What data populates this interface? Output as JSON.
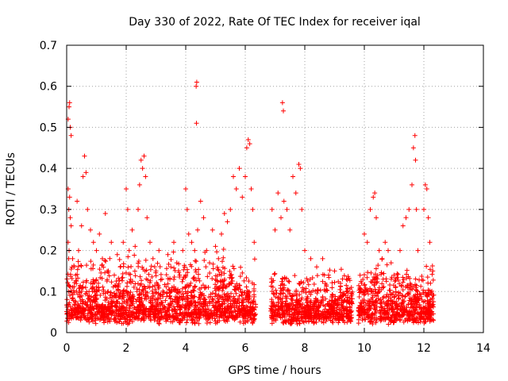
{
  "chart_data": {
    "type": "scatter",
    "title": "Day 330 of 2022, Rate Of TEC Index for receiver iqal",
    "xlabel": "GPS time / hours",
    "ylabel": "ROTI / TECUs",
    "xlim": [
      0,
      14
    ],
    "ylim": [
      0,
      0.7
    ],
    "xticks": [
      "0",
      "2",
      "4",
      "6",
      "8",
      "10",
      "12",
      "14"
    ],
    "yticks": [
      "0",
      "0.1",
      "0.2",
      "0.3",
      "0.4",
      "0.5",
      "0.6",
      "0.7"
    ],
    "grid": true,
    "marker": "plus",
    "color": "#ff0000",
    "series": [
      {
        "name": "ROTI",
        "points": [
          [
            0.05,
            0.52
          ],
          [
            0.08,
            0.55
          ],
          [
            0.1,
            0.56
          ],
          [
            0.12,
            0.5
          ],
          [
            0.15,
            0.48
          ],
          [
            0.05,
            0.35
          ],
          [
            0.1,
            0.33
          ],
          [
            0.07,
            0.3
          ],
          [
            0.12,
            0.28
          ],
          [
            0.15,
            0.26
          ],
          [
            0.05,
            0.22
          ],
          [
            0.08,
            0.2
          ],
          [
            0.2,
            0.18
          ],
          [
            0.25,
            0.16
          ],
          [
            0.3,
            0.14
          ],
          [
            0.35,
            0.32
          ],
          [
            0.4,
            0.2
          ],
          [
            0.5,
            0.26
          ],
          [
            0.55,
            0.38
          ],
          [
            0.6,
            0.43
          ],
          [
            0.65,
            0.39
          ],
          [
            0.7,
            0.3
          ],
          [
            0.8,
            0.25
          ],
          [
            0.9,
            0.22
          ],
          [
            1.0,
            0.2
          ],
          [
            1.1,
            0.24
          ],
          [
            1.2,
            0.18
          ],
          [
            1.3,
            0.29
          ],
          [
            1.4,
            0.15
          ],
          [
            1.5,
            0.22
          ],
          [
            1.6,
            0.14
          ],
          [
            1.7,
            0.19
          ],
          [
            1.8,
            0.16
          ],
          [
            1.9,
            0.22
          ],
          [
            2.0,
            0.35
          ],
          [
            2.05,
            0.3
          ],
          [
            2.1,
            0.2
          ],
          [
            2.2,
            0.25
          ],
          [
            2.3,
            0.21
          ],
          [
            2.4,
            0.3
          ],
          [
            2.45,
            0.36
          ],
          [
            2.5,
            0.42
          ],
          [
            2.55,
            0.4
          ],
          [
            2.6,
            0.43
          ],
          [
            2.65,
            0.38
          ],
          [
            2.7,
            0.28
          ],
          [
            2.8,
            0.22
          ],
          [
            2.9,
            0.18
          ],
          [
            3.0,
            0.15
          ],
          [
            3.1,
            0.2
          ],
          [
            3.2,
            0.13
          ],
          [
            3.4,
            0.19
          ],
          [
            3.5,
            0.16
          ],
          [
            3.6,
            0.22
          ],
          [
            3.7,
            0.17
          ],
          [
            3.8,
            0.14
          ],
          [
            3.9,
            0.2
          ],
          [
            4.0,
            0.35
          ],
          [
            4.05,
            0.3
          ],
          [
            4.1,
            0.24
          ],
          [
            4.2,
            0.22
          ],
          [
            4.3,
            0.2
          ],
          [
            4.35,
            0.6
          ],
          [
            4.37,
            0.61
          ],
          [
            4.36,
            0.51
          ],
          [
            4.4,
            0.25
          ],
          [
            4.5,
            0.32
          ],
          [
            4.6,
            0.28
          ],
          [
            4.7,
            0.2
          ],
          [
            4.8,
            0.17
          ],
          [
            4.9,
            0.25
          ],
          [
            5.0,
            0.21
          ],
          [
            5.1,
            0.18
          ],
          [
            5.2,
            0.24
          ],
          [
            5.3,
            0.29
          ],
          [
            5.4,
            0.27
          ],
          [
            5.5,
            0.3
          ],
          [
            5.6,
            0.38
          ],
          [
            5.7,
            0.35
          ],
          [
            5.8,
            0.4
          ],
          [
            5.9,
            0.33
          ],
          [
            6.0,
            0.38
          ],
          [
            6.05,
            0.45
          ],
          [
            6.1,
            0.47
          ],
          [
            6.15,
            0.46
          ],
          [
            6.2,
            0.35
          ],
          [
            6.25,
            0.3
          ],
          [
            6.3,
            0.22
          ],
          [
            6.9,
            0.3
          ],
          [
            7.0,
            0.25
          ],
          [
            7.1,
            0.34
          ],
          [
            7.2,
            0.28
          ],
          [
            7.25,
            0.56
          ],
          [
            7.28,
            0.54
          ],
          [
            7.3,
            0.32
          ],
          [
            7.4,
            0.3
          ],
          [
            7.5,
            0.25
          ],
          [
            7.6,
            0.38
          ],
          [
            7.7,
            0.34
          ],
          [
            7.8,
            0.41
          ],
          [
            7.85,
            0.4
          ],
          [
            7.9,
            0.3
          ],
          [
            8.0,
            0.2
          ],
          [
            8.2,
            0.18
          ],
          [
            8.4,
            0.16
          ],
          [
            8.6,
            0.18
          ],
          [
            8.8,
            0.14
          ],
          [
            9.0,
            0.15
          ],
          [
            9.2,
            0.12
          ],
          [
            9.4,
            0.13
          ],
          [
            10.0,
            0.24
          ],
          [
            10.1,
            0.22
          ],
          [
            10.2,
            0.3
          ],
          [
            10.3,
            0.33
          ],
          [
            10.35,
            0.34
          ],
          [
            10.4,
            0.28
          ],
          [
            10.5,
            0.2
          ],
          [
            10.6,
            0.18
          ],
          [
            10.7,
            0.22
          ],
          [
            10.8,
            0.2
          ],
          [
            10.9,
            0.17
          ],
          [
            11.0,
            0.14
          ],
          [
            11.2,
            0.2
          ],
          [
            11.3,
            0.26
          ],
          [
            11.4,
            0.28
          ],
          [
            11.5,
            0.3
          ],
          [
            11.6,
            0.36
          ],
          [
            11.65,
            0.45
          ],
          [
            11.7,
            0.48
          ],
          [
            11.72,
            0.42
          ],
          [
            11.75,
            0.3
          ],
          [
            11.8,
            0.2
          ],
          [
            12.0,
            0.3
          ],
          [
            12.05,
            0.36
          ],
          [
            12.1,
            0.35
          ],
          [
            12.15,
            0.28
          ],
          [
            12.2,
            0.22
          ],
          [
            12.3,
            0.15
          ]
        ]
      }
    ],
    "dense_segments": [
      {
        "x_from": 0.0,
        "x_to": 6.35,
        "y_low": 0.02,
        "y_high": 0.18
      },
      {
        "x_from": 6.85,
        "x_to": 9.6,
        "y_low": 0.02,
        "y_high": 0.14
      },
      {
        "x_from": 9.8,
        "x_to": 12.35,
        "y_low": 0.02,
        "y_high": 0.16
      }
    ]
  }
}
